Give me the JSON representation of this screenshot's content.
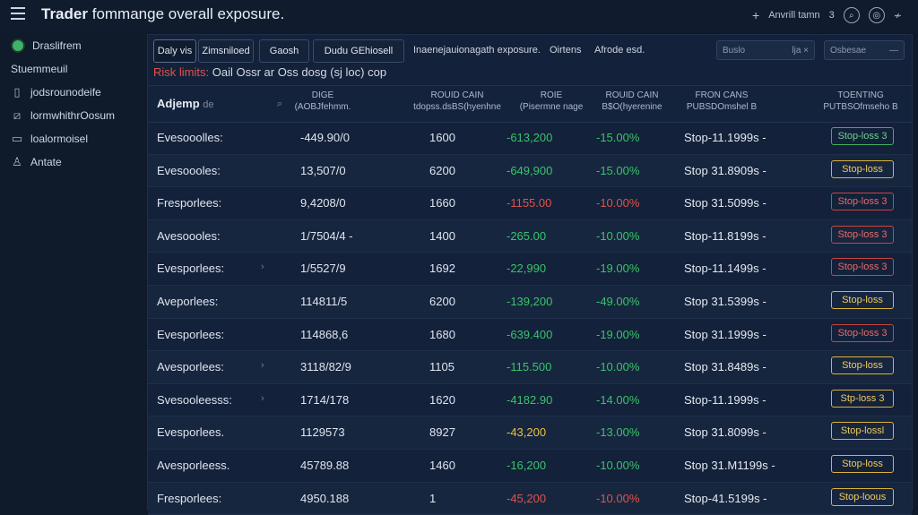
{
  "header": {
    "title_bold": "Trader",
    "title_rest": "fommange overall exposure.",
    "right_text": "Anvrill tamn",
    "right_num": "3"
  },
  "sidebar": {
    "items": [
      {
        "label": "Draslifrem",
        "icon": "brand-dot"
      },
      {
        "label": "Stuemmeuil",
        "icon": "none"
      },
      {
        "label": "jodsrounodeife",
        "icon": "document-icon"
      },
      {
        "label": "lormwhithrOosum",
        "icon": "chart-icon"
      },
      {
        "label": "loalormoisel",
        "icon": "folder-icon"
      },
      {
        "label": "Antate",
        "icon": "user-icon"
      }
    ]
  },
  "toolbar": {
    "tabs": [
      "Daly vis",
      "Zimsniloed",
      "Gaosh",
      "Dudu GEhiosell"
    ],
    "crumb_1": "Inaenejauionagath exposure.",
    "crumb_2": "Oirtens",
    "crumb_3": "Afrode esd.",
    "search_placeholder": "Buslo",
    "search_badge": "lja ×",
    "filter_placeholder": "Osbesae"
  },
  "risk": {
    "label": "Risk limits:",
    "text": "Oail Ossr ar Oss dosg (sj loc) cop"
  },
  "table": {
    "first_header": "Adjemp",
    "first_header_sub": "de",
    "headers": [
      {
        "l1": "DIGE",
        "l2": "(AOBJfehmm."
      },
      {
        "l1": "ROUID CAIN",
        "l2": "tdopss.dsBS(hyenhne"
      },
      {
        "l1": "ROIE",
        "l2": "(Pisermne nage"
      },
      {
        "l1": "ROUID CAIN",
        "l2": "B$O(hyerenine"
      },
      {
        "l1": "FRON CANS",
        "l2": "PUBSDOmshel B"
      },
      {
        "l1": "TOENTING",
        "l2": "PUTBSOfmseho B"
      }
    ],
    "rows": [
      {
        "name": "Evesooolles:",
        "size": "-449.90/0",
        "qty": "1600",
        "pnl": "-613,200",
        "pnl_tone": "pos",
        "pct": "-15.00%",
        "pct_tone": "pos",
        "stop": "Stop-11.1999s -",
        "btn": "Stop-loss 3",
        "btn_tone": "green"
      },
      {
        "name": "Evesoooles:",
        "size": "13,507/0",
        "qty": "6200",
        "pnl": "-649,900",
        "pnl_tone": "pos",
        "pct": "-15.00%",
        "pct_tone": "pos",
        "stop": "Stop 31.8909s -",
        "btn": "Stop-loss",
        "btn_tone": "yellow"
      },
      {
        "name": "Fresporlees:",
        "size": "9,4208/0",
        "qty": "1660",
        "pnl": "-1155.00",
        "pnl_tone": "neg",
        "pct": "-10.00%",
        "pct_tone": "neg",
        "stop": "Stop 31.5099s -",
        "btn": "Stop-loss 3",
        "btn_tone": "red"
      },
      {
        "name": "Avesoooles:",
        "size": "1/7504/4 -",
        "qty": "1400",
        "pnl": "-265.00",
        "pnl_tone": "pos",
        "pct": "-10.00%",
        "pct_tone": "pos",
        "stop": "Stop-11.8199s -",
        "btn": "Stop-loss 3",
        "btn_tone": "red"
      },
      {
        "name": "Evesporlees:",
        "size": "1/5527/9",
        "qty": "1692",
        "pnl": "-22,990",
        "pnl_tone": "pos",
        "pct": "-19.00%",
        "pct_tone": "pos",
        "stop": "Stop-11.1499s -",
        "btn": "Stop-loss 3",
        "btn_tone": "red"
      },
      {
        "name": "Aveporlees:",
        "size": "114811/5",
        "qty": "6200",
        "pnl": "-139,200",
        "pnl_tone": "pos",
        "pct": "-49.00%",
        "pct_tone": "pos",
        "stop": "Stop 31.5399s -",
        "btn": "Stop-loss",
        "btn_tone": "yellow"
      },
      {
        "name": "Evesporlees:",
        "size": "114868,6",
        "qty": "1680",
        "pnl": "-639.400",
        "pnl_tone": "pos",
        "pct": "-19.00%",
        "pct_tone": "pos",
        "stop": "Stop 31.1999s -",
        "btn": "Stop-loss 3",
        "btn_tone": "red"
      },
      {
        "name": "Avesporlees:",
        "size": "3118/82/9",
        "qty": "1105",
        "pnl": "-115.500",
        "pnl_tone": "pos",
        "pct": "-10.00%",
        "pct_tone": "pos",
        "stop": "Stop 31.8489s -",
        "btn": "Stop-loss",
        "btn_tone": "yellow"
      },
      {
        "name": "Svesooleesss:",
        "size": "1714/178",
        "qty": "1620",
        "pnl": "-4182.90",
        "pnl_tone": "pos",
        "pct": "-14.00%",
        "pct_tone": "pos",
        "stop": "Stop-11.1999s -",
        "btn": "Stp-loss 3",
        "btn_tone": "yellow"
      },
      {
        "name": "Evesporlees.",
        "size": "1129573",
        "qty": "8927",
        "pnl": "-43,200",
        "pnl_tone": "warn",
        "pct": "-13.00%",
        "pct_tone": "pos",
        "stop": "Stop 31.8099s -",
        "btn": "Stop-lossl",
        "btn_tone": "yellow"
      },
      {
        "name": "Avesporleess.",
        "size": "45789.88",
        "qty": "1460",
        "pnl": "-16,200",
        "pnl_tone": "pos",
        "pct": "-10.00%",
        "pct_tone": "pos",
        "stop": "Stop 31.M1199s -",
        "btn": "Stop-loss",
        "btn_tone": "yellow"
      },
      {
        "name": "Fresporlees:",
        "size": "4950.188",
        "qty": "1",
        "pnl": "-45,200",
        "pnl_tone": "neg",
        "pct": "-10.00%",
        "pct_tone": "neg",
        "stop": "Stop-41.5199s -",
        "btn": "Stop-loous",
        "btn_tone": "yellow"
      }
    ]
  },
  "colors": {
    "positive": "#39c46a",
    "negative": "#e0524c",
    "warning": "#e8c040",
    "background": "#0f1a2b"
  }
}
